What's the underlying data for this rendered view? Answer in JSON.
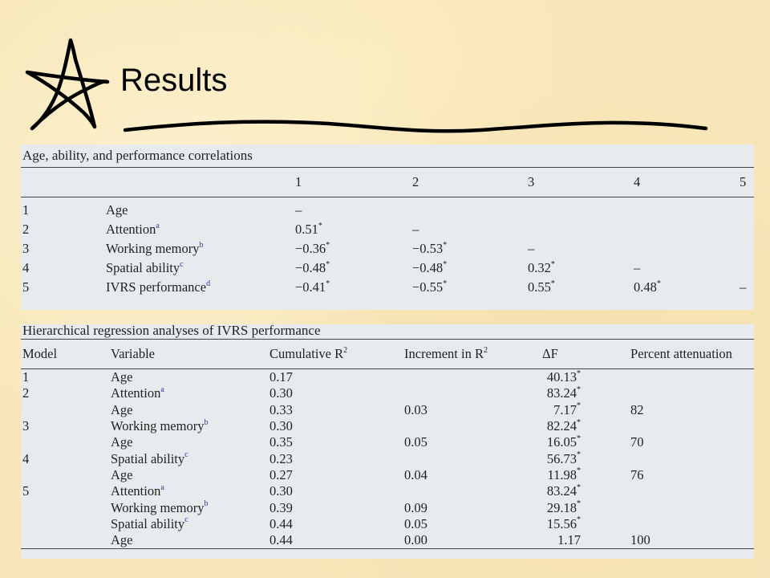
{
  "slide": {
    "title": "Results"
  },
  "correlations": {
    "caption": "Age, ability, and performance correlations",
    "columns": [
      "",
      "",
      "1",
      "2",
      "3",
      "4",
      "5"
    ],
    "rows": [
      {
        "num": "1",
        "label": "Age",
        "sup": "",
        "cells": [
          "–",
          "",
          "",
          "",
          ""
        ],
        "sig": [
          false,
          false,
          false,
          false,
          false
        ]
      },
      {
        "num": "2",
        "label": "Attention",
        "sup": "a",
        "cells": [
          "0.51",
          "–",
          "",
          "",
          ""
        ],
        "sig": [
          true,
          false,
          false,
          false,
          false
        ]
      },
      {
        "num": "3",
        "label": "Working memory",
        "sup": "b",
        "cells": [
          "−0.36",
          "−0.53",
          "–",
          "",
          ""
        ],
        "sig": [
          true,
          true,
          false,
          false,
          false
        ]
      },
      {
        "num": "4",
        "label": "Spatial ability",
        "sup": "c",
        "cells": [
          "−0.48",
          "−0.48",
          "0.32",
          "–",
          ""
        ],
        "sig": [
          true,
          true,
          true,
          false,
          false
        ]
      },
      {
        "num": "5",
        "label": "IVRS performance",
        "sup": "d",
        "cells": [
          "−0.41",
          "−0.55",
          "0.55",
          "0.48",
          "–"
        ],
        "sig": [
          true,
          true,
          true,
          true,
          false
        ]
      }
    ]
  },
  "regression": {
    "caption": "Hierarchical regression analyses of IVRS performance",
    "columns": {
      "model": "Model",
      "variable": "Variable",
      "cum_r2": "Cumulative R",
      "cum_r2_sup": "2",
      "inc_r2": "Increment in R",
      "inc_r2_sup": "2",
      "delta_f": "ΔF",
      "pct": "Percent attenuation"
    },
    "rows": [
      {
        "model": "1",
        "variable": "Age",
        "sup": "",
        "cum": "0.17",
        "inc": "",
        "df": "40.13",
        "sig": true,
        "pct": ""
      },
      {
        "model": "2",
        "variable": "Attention",
        "sup": "a",
        "cum": "0.30",
        "inc": "",
        "df": "83.24",
        "sig": true,
        "pct": ""
      },
      {
        "model": "",
        "variable": "Age",
        "sup": "",
        "cum": "0.33",
        "inc": "0.03",
        "df": "7.17",
        "sig": true,
        "pct": "82"
      },
      {
        "model": "3",
        "variable": "Working memory",
        "sup": "b",
        "cum": "0.30",
        "inc": "",
        "df": "82.24",
        "sig": true,
        "pct": ""
      },
      {
        "model": "",
        "variable": "Age",
        "sup": "",
        "cum": "0.35",
        "inc": "0.05",
        "df": "16.05",
        "sig": true,
        "pct": "70"
      },
      {
        "model": "4",
        "variable": "Spatial ability",
        "sup": "c",
        "cum": "0.23",
        "inc": "",
        "df": "56.73",
        "sig": true,
        "pct": ""
      },
      {
        "model": "",
        "variable": "Age",
        "sup": "",
        "cum": "0.27",
        "inc": "0.04",
        "df": "11.98",
        "sig": true,
        "pct": "76"
      },
      {
        "model": "5",
        "variable": "Attention",
        "sup": "a",
        "cum": "0.30",
        "inc": "",
        "df": "83.24",
        "sig": true,
        "pct": ""
      },
      {
        "model": "",
        "variable": "Working memory",
        "sup": "b",
        "cum": "0.39",
        "inc": "0.09",
        "df": "29.18",
        "sig": true,
        "pct": ""
      },
      {
        "model": "",
        "variable": "Spatial ability",
        "sup": "c",
        "cum": "0.44",
        "inc": "0.05",
        "df": "15.56",
        "sig": true,
        "pct": ""
      },
      {
        "model": "",
        "variable": "Age",
        "sup": "",
        "cum": "0.44",
        "inc": "0.00",
        "df": "1.17",
        "sig": false,
        "pct": "100"
      }
    ]
  },
  "marks": {
    "significance": "*"
  },
  "icons": {
    "title_decoration": "hand-drawn-star-icon",
    "underline": "wavy-underline"
  },
  "colors": {
    "background": "#f8e6b8",
    "panel": "#e7ebee",
    "superscript": "#2a3f9e"
  }
}
